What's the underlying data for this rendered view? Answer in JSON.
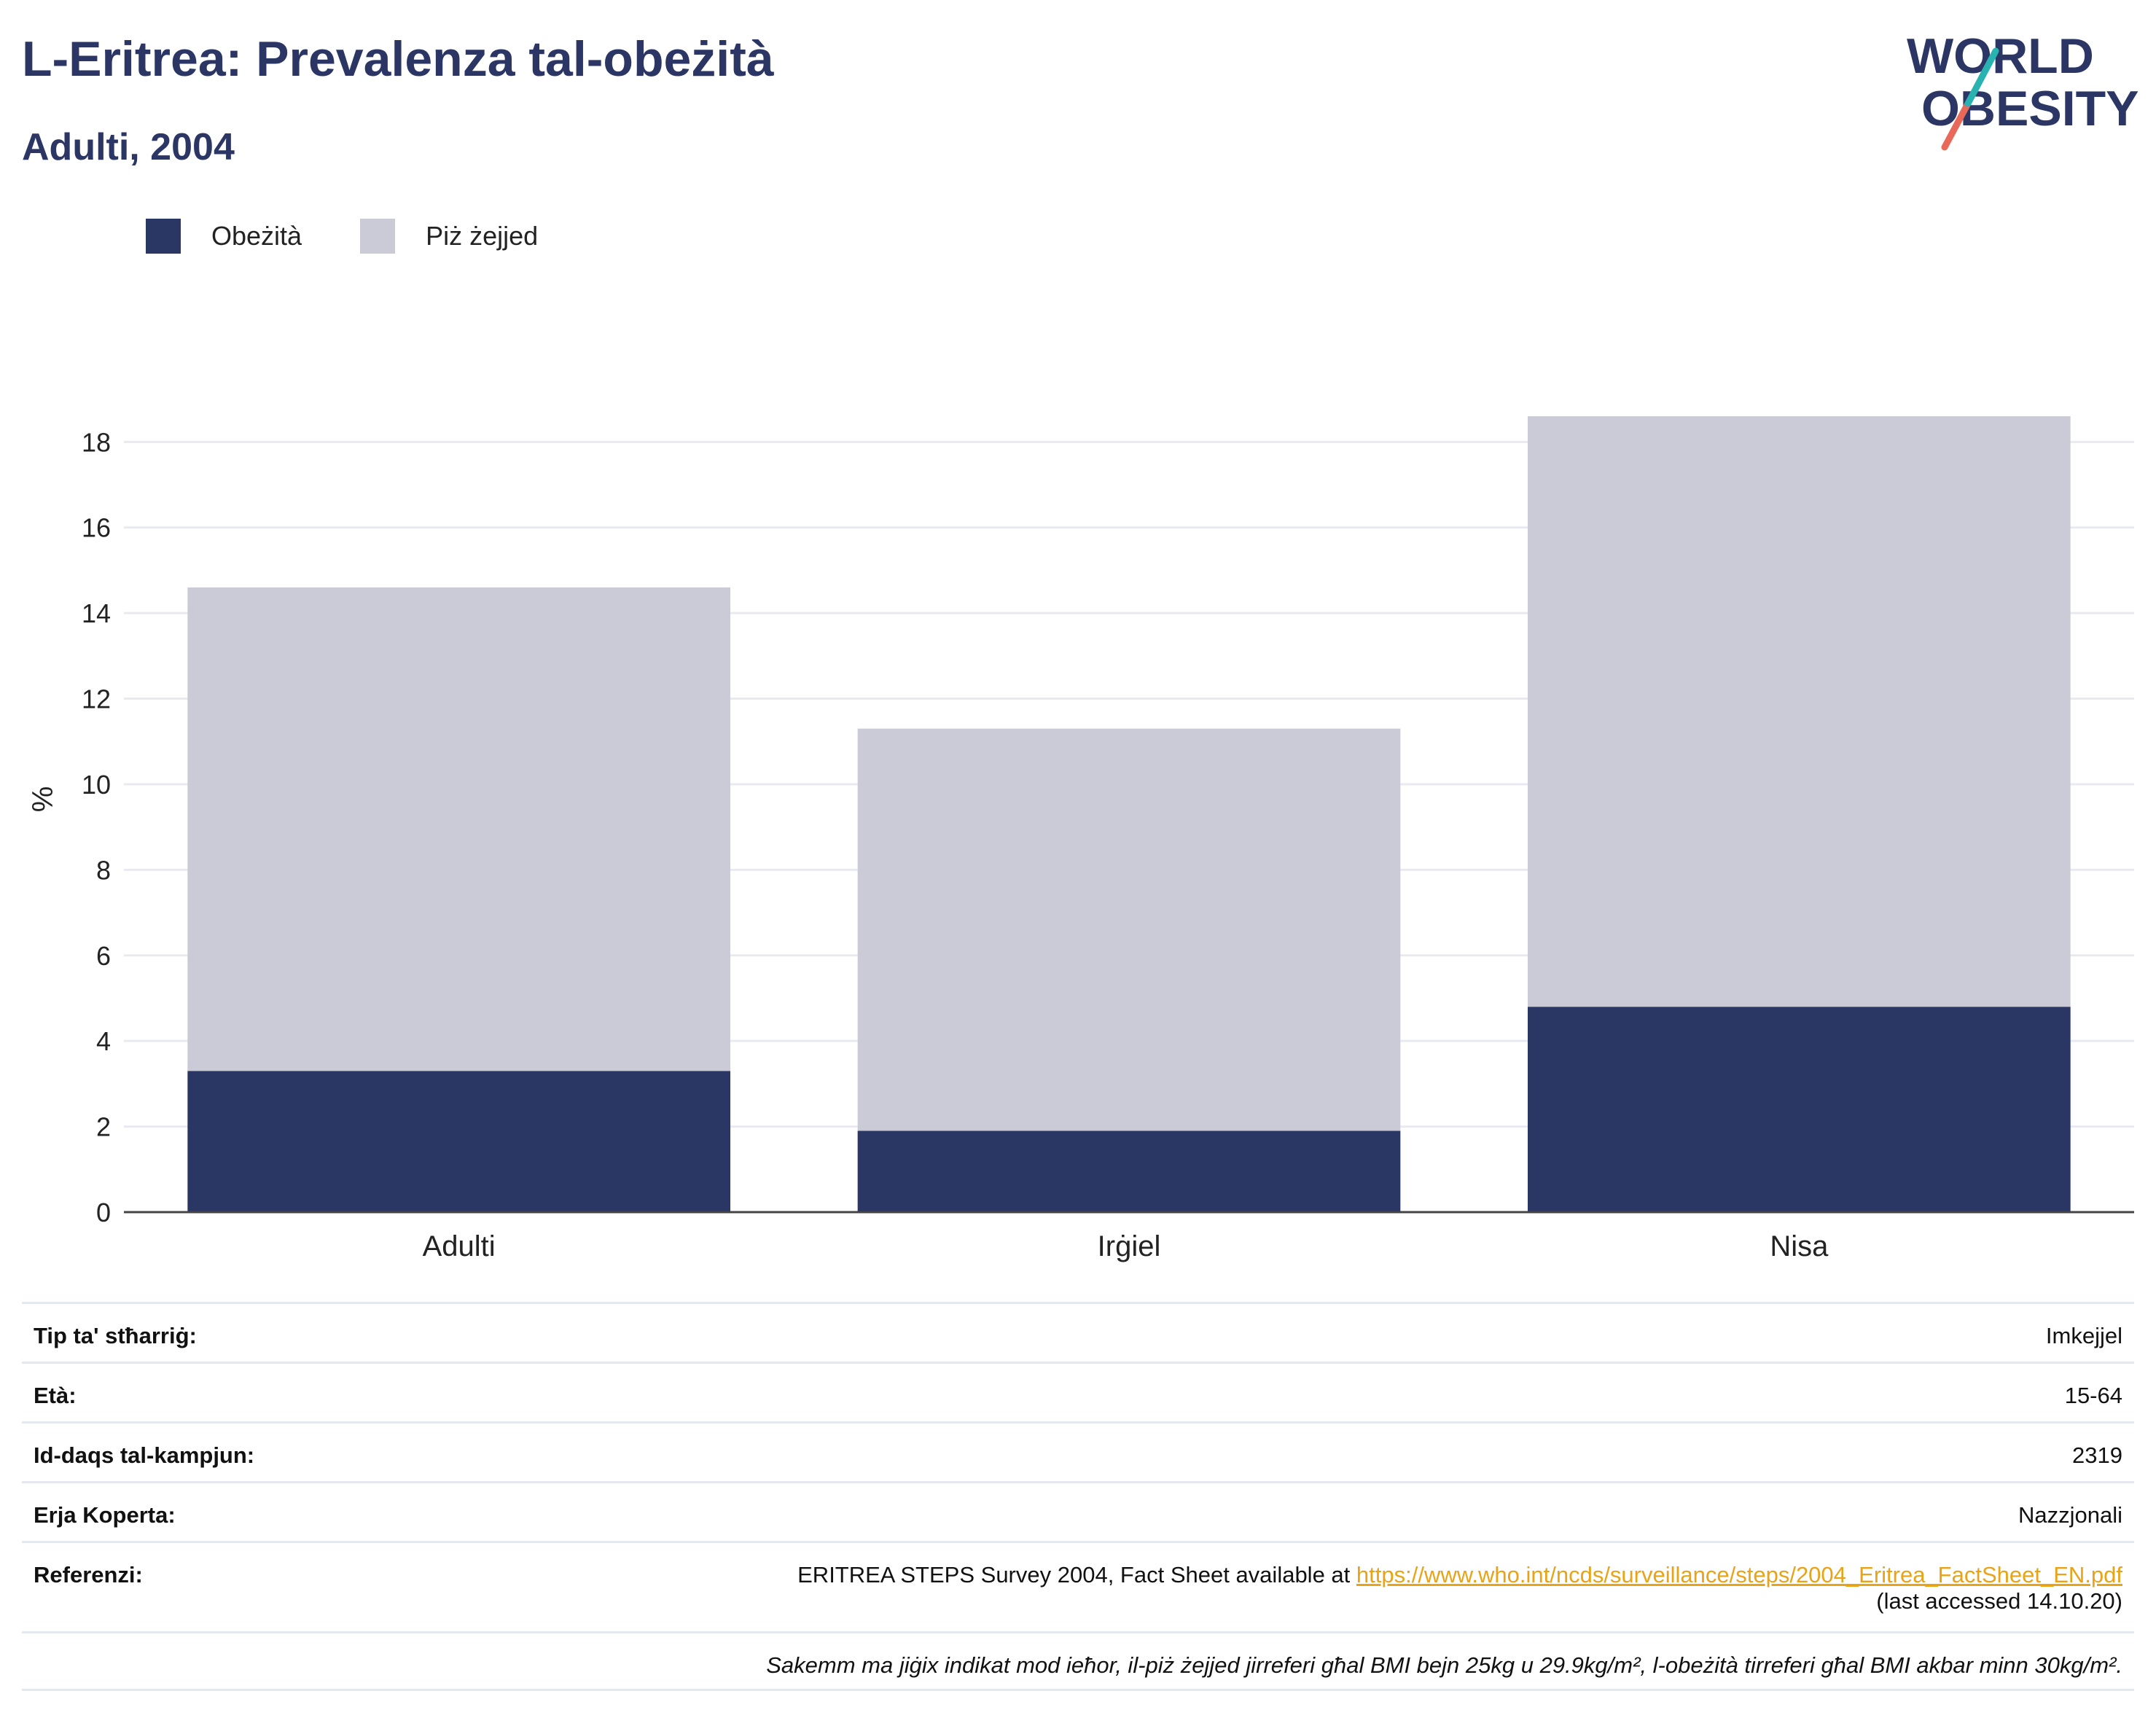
{
  "header": {
    "title": "L-Eritrea: Prevalenza tal-obeżità",
    "subtitle": "Adulti, 2004",
    "logo_line1": "WORLD",
    "logo_line2": "OBESITY"
  },
  "legend": {
    "items": [
      {
        "label": "Obeżità",
        "color": "#2a3664"
      },
      {
        "label": "Piż żejjed",
        "color": "#cacbd6"
      }
    ]
  },
  "chart_data": {
    "type": "bar",
    "stacked": true,
    "categories": [
      "Adulti",
      "Irġiel",
      "Nisa"
    ],
    "series": [
      {
        "name": "Obeżità",
        "color": "#2a3664",
        "values": [
          3.3,
          1.9,
          4.8
        ]
      },
      {
        "name": "Piż żejjed",
        "color": "#cacbd6",
        "values": [
          11.3,
          9.4,
          13.8
        ]
      }
    ],
    "ylabel": "%",
    "ylim": [
      0,
      19.3
    ],
    "yticks": [
      0,
      2,
      4,
      6,
      8,
      10,
      12,
      14,
      16,
      18
    ],
    "grid": true,
    "legend_position": "top-left"
  },
  "info": {
    "rows": [
      {
        "key": "Tip ta' stħarriġ:",
        "value": "Imkejjel"
      },
      {
        "key": "Età:",
        "value": "15-64"
      },
      {
        "key": "Id-daqs tal-kampjun:",
        "value": "2319"
      },
      {
        "key": "Erja Koperta:",
        "value": "Nazzjonali"
      }
    ],
    "reference": {
      "key": "Referenzi:",
      "text_before": "ERITREA STEPS Survey 2004, Fact Sheet available at ",
      "link": "https://www.who.int/ncds/surveillance/steps/2004_Eritrea_FactSheet_EN.pdf",
      "text_after": "(last accessed 14.10.20)"
    },
    "note": "Sakemm ma jiġix indikat mod ieħor, il-piż żejjed jirreferi għal BMI bejn 25kg u 29.9kg/m², l-obeżità tirreferi għal BMI akbar minn 30kg/m²."
  }
}
